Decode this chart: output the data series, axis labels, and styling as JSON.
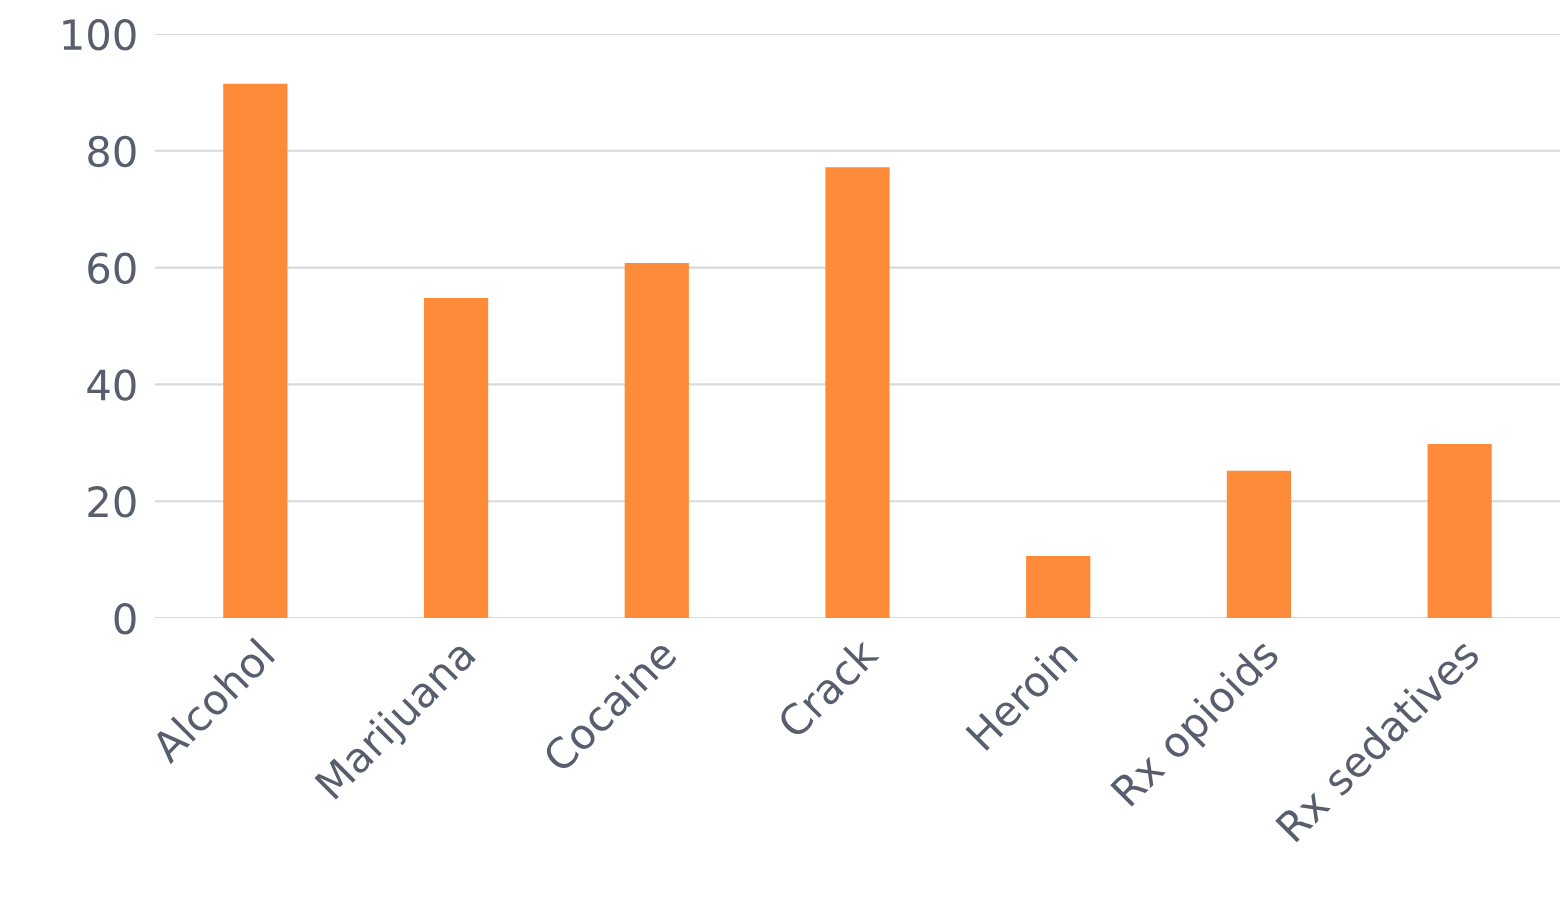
{
  "chart_data": {
    "type": "bar",
    "categories": [
      "Alcohol",
      "Marijuana",
      "Cocaine",
      "Crack",
      "Heroin",
      "Rx opioids",
      "Rx sedatives"
    ],
    "values": [
      91.5,
      54.8,
      60.8,
      77.2,
      10.6,
      25.2,
      29.8
    ],
    "color": "#fd8b3a",
    "ylim": [
      0,
      100
    ],
    "yticks": [
      0,
      20,
      40,
      60,
      80,
      100
    ],
    "grid": "y"
  }
}
